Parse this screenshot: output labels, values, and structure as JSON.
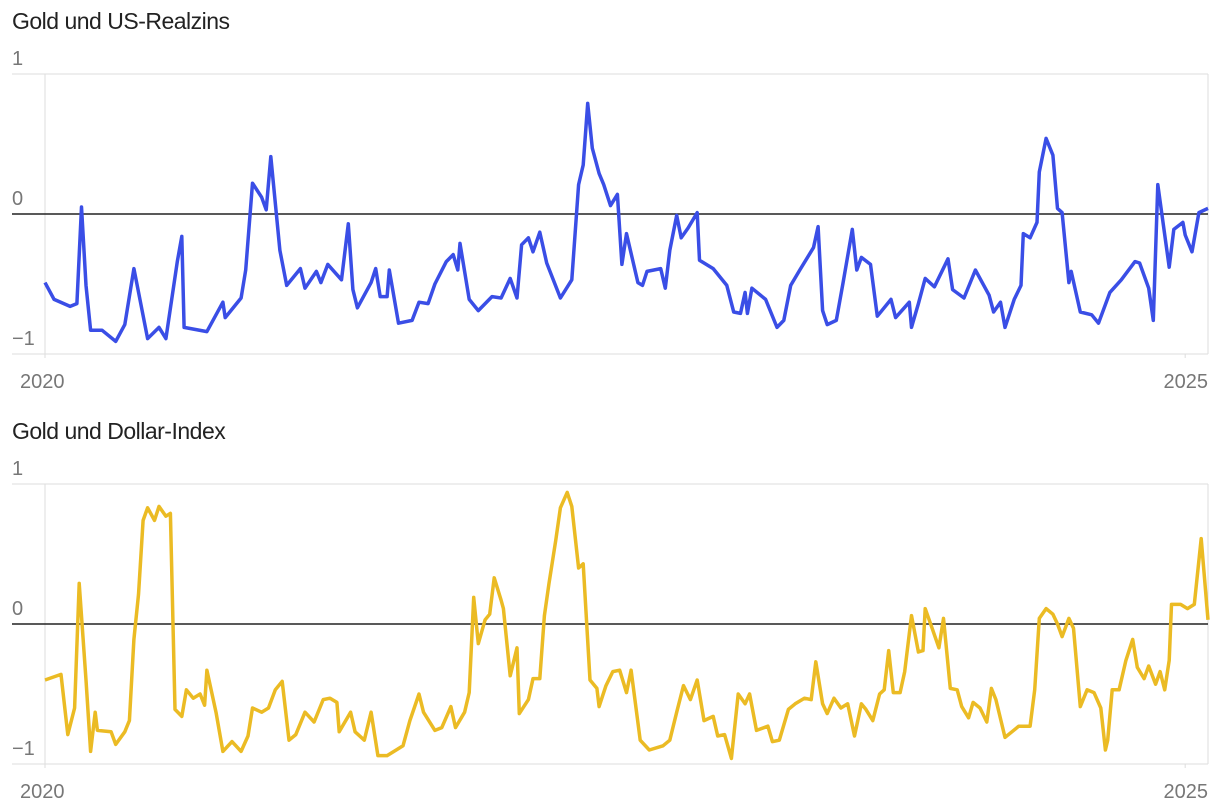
{
  "chart_data": [
    {
      "type": "line",
      "title": "Gold und US-Realzins",
      "color": "#3a4ee6",
      "xlim": [
        2020,
        2025.1
      ],
      "xticks": [
        2020,
        2025
      ],
      "ylim": [
        -1,
        1
      ],
      "yticks": [
        {
          "value": -1,
          "label": "−1"
        },
        0,
        1
      ],
      "x": [
        2020.0,
        2020.04,
        2020.11,
        2020.14,
        2020.16,
        2020.18,
        2020.2,
        2020.25,
        2020.31,
        2020.35,
        2020.39,
        2020.45,
        2020.5,
        2020.53,
        2020.58,
        2020.6,
        2020.61,
        2020.71,
        2020.78,
        2020.79,
        2020.86,
        2020.88,
        2020.91,
        2020.95,
        2020.97,
        2020.99,
        2021.03,
        2021.06,
        2021.12,
        2021.14,
        2021.19,
        2021.21,
        2021.24,
        2021.3,
        2021.33,
        2021.35,
        2021.37,
        2021.43,
        2021.45,
        2021.47,
        2021.5,
        2021.51,
        2021.55,
        2021.61,
        2021.64,
        2021.68,
        2021.71,
        2021.76,
        2021.79,
        2021.81,
        2021.82,
        2021.86,
        2021.9,
        2021.96,
        2022.0,
        2022.04,
        2022.07,
        2022.09,
        2022.12,
        2022.14,
        2022.17,
        2022.2,
        2022.26,
        2022.31,
        2022.34,
        2022.36,
        2022.38,
        2022.4,
        2022.43,
        2022.45,
        2022.48,
        2022.51,
        2022.53,
        2022.55,
        2022.6,
        2022.62,
        2022.64,
        2022.7,
        2022.72,
        2022.74,
        2022.77,
        2022.79,
        2022.82,
        2022.86,
        2022.87,
        2022.93,
        2022.99,
        2023.02,
        2023.05,
        2023.07,
        2023.08,
        2023.1,
        2023.16,
        2023.21,
        2023.24,
        2023.27,
        2023.31,
        2023.37,
        2023.39,
        2023.41,
        2023.43,
        2023.47,
        2023.5,
        2023.54,
        2023.56,
        2023.58,
        2023.62,
        2023.65,
        2023.71,
        2023.73,
        2023.79,
        2023.8,
        2023.83,
        2023.86,
        2023.9,
        2023.96,
        2023.98,
        2024.03,
        2024.08,
        2024.14,
        2024.16,
        2024.19,
        2024.21,
        2024.25,
        2024.28,
        2024.29,
        2024.32,
        2024.35,
        2024.36,
        2024.39,
        2024.42,
        2024.44,
        2024.46,
        2024.49,
        2024.5,
        2024.54,
        2024.59,
        2024.62,
        2024.67,
        2024.72,
        2024.78,
        2024.8,
        2024.84,
        2024.86,
        2024.88,
        2024.93,
        2024.95,
        2024.99,
        2025.0,
        2025.03,
        2025.06,
        2025.1
      ],
      "values": [
        -0.49,
        -0.61,
        -0.66,
        -0.64,
        0.05,
        -0.51,
        -0.83,
        -0.83,
        -0.91,
        -0.79,
        -0.39,
        -0.89,
        -0.81,
        -0.89,
        -0.34,
        -0.16,
        -0.81,
        -0.84,
        -0.63,
        -0.74,
        -0.6,
        -0.4,
        0.22,
        0.12,
        0.03,
        0.41,
        -0.26,
        -0.51,
        -0.39,
        -0.53,
        -0.41,
        -0.49,
        -0.36,
        -0.47,
        -0.07,
        -0.54,
        -0.67,
        -0.49,
        -0.39,
        -0.59,
        -0.59,
        -0.4,
        -0.78,
        -0.76,
        -0.63,
        -0.64,
        -0.5,
        -0.34,
        -0.29,
        -0.4,
        -0.21,
        -0.61,
        -0.69,
        -0.59,
        -0.6,
        -0.46,
        -0.6,
        -0.22,
        -0.17,
        -0.27,
        -0.13,
        -0.35,
        -0.6,
        -0.47,
        0.21,
        0.35,
        0.79,
        0.47,
        0.29,
        0.21,
        0.06,
        0.14,
        -0.36,
        -0.14,
        -0.49,
        -0.51,
        -0.41,
        -0.39,
        -0.53,
        -0.26,
        -0.01,
        -0.17,
        -0.1,
        0.01,
        -0.33,
        -0.39,
        -0.51,
        -0.7,
        -0.71,
        -0.56,
        -0.71,
        -0.53,
        -0.61,
        -0.81,
        -0.76,
        -0.51,
        -0.4,
        -0.24,
        -0.09,
        -0.69,
        -0.79,
        -0.76,
        -0.49,
        -0.11,
        -0.4,
        -0.31,
        -0.36,
        -0.73,
        -0.61,
        -0.74,
        -0.63,
        -0.81,
        -0.64,
        -0.46,
        -0.52,
        -0.32,
        -0.54,
        -0.6,
        -0.4,
        -0.58,
        -0.7,
        -0.63,
        -0.81,
        -0.61,
        -0.51,
        -0.14,
        -0.17,
        -0.06,
        0.3,
        0.54,
        0.42,
        0.04,
        0.01,
        -0.49,
        -0.41,
        -0.7,
        -0.72,
        -0.78,
        -0.56,
        -0.47,
        -0.34,
        -0.35,
        -0.53,
        -0.76,
        0.21,
        -0.38,
        -0.11,
        -0.06,
        -0.15,
        -0.27,
        0.01,
        0.04
      ]
    },
    {
      "type": "line",
      "title": "Gold und Dollar-Index",
      "color": "#ebbb24",
      "xlim": [
        2020,
        2025.1
      ],
      "xticks": [
        2020,
        2025
      ],
      "ylim": [
        -1,
        1
      ],
      "yticks": [
        {
          "value": -1,
          "label": "−1"
        },
        0,
        1
      ],
      "x": [
        2020.0,
        2020.07,
        2020.1,
        2020.13,
        2020.15,
        2020.18,
        2020.2,
        2020.22,
        2020.23,
        2020.29,
        2020.31,
        2020.35,
        2020.37,
        2020.39,
        2020.41,
        2020.43,
        2020.45,
        2020.48,
        2020.5,
        2020.53,
        2020.55,
        2020.57,
        2020.6,
        2020.62,
        2020.65,
        2020.68,
        2020.7,
        2020.71,
        2020.75,
        2020.78,
        2020.82,
        2020.86,
        2020.89,
        2020.91,
        2020.95,
        2020.98,
        2021.01,
        2021.04,
        2021.07,
        2021.1,
        2021.14,
        2021.18,
        2021.22,
        2021.25,
        2021.28,
        2021.29,
        2021.34,
        2021.36,
        2021.4,
        2021.43,
        2021.46,
        2021.5,
        2021.54,
        2021.57,
        2021.6,
        2021.64,
        2021.66,
        2021.71,
        2021.74,
        2021.78,
        2021.8,
        2021.84,
        2021.86,
        2021.88,
        2021.9,
        2021.93,
        2021.95,
        2021.97,
        2022.0,
        2022.01,
        2022.04,
        2022.07,
        2022.08,
        2022.12,
        2022.14,
        2022.17,
        2022.19,
        2022.21,
        2022.24,
        2022.26,
        2022.29,
        2022.31,
        2022.34,
        2022.36,
        2022.39,
        2022.42,
        2022.43,
        2022.46,
        2022.49,
        2022.52,
        2022.55,
        2022.57,
        2022.61,
        2022.65,
        2022.71,
        2022.74,
        2022.77,
        2022.8,
        2022.83,
        2022.86,
        2022.89,
        2022.93,
        2022.95,
        2022.98,
        2023.01,
        2023.04,
        2023.07,
        2023.09,
        2023.12,
        2023.17,
        2023.19,
        2023.22,
        2023.26,
        2023.29,
        2023.33,
        2023.36,
        2023.38,
        2023.41,
        2023.43,
        2023.46,
        2023.49,
        2023.52,
        2023.55,
        2023.58,
        2023.6,
        2023.63,
        2023.66,
        2023.68,
        2023.7,
        2023.72,
        2023.75,
        2023.77,
        2023.8,
        2023.83,
        2023.85,
        2023.86,
        2023.89,
        2023.92,
        2023.94,
        2023.97,
        2024.0,
        2024.02,
        2024.05,
        2024.07,
        2024.1,
        2024.13,
        2024.15,
        2024.17,
        2024.21,
        2024.24,
        2024.27,
        2024.32,
        2024.34,
        2024.36,
        2024.39,
        2024.42,
        2024.44,
        2024.46,
        2024.49,
        2024.51,
        2024.54,
        2024.57,
        2024.6,
        2024.63,
        2024.65,
        2024.66,
        2024.68,
        2024.71,
        2024.74,
        2024.77,
        2024.79,
        2024.82,
        2024.84,
        2024.87,
        2024.89,
        2024.91,
        2024.93,
        2024.94,
        2024.98,
        2025.01,
        2025.04,
        2025.07,
        2025.1
      ],
      "values": [
        -0.4,
        -0.36,
        -0.79,
        -0.6,
        0.29,
        -0.4,
        -0.91,
        -0.63,
        -0.76,
        -0.77,
        -0.86,
        -0.77,
        -0.69,
        -0.11,
        0.21,
        0.74,
        0.83,
        0.74,
        0.84,
        0.77,
        0.79,
        -0.61,
        -0.66,
        -0.47,
        -0.53,
        -0.5,
        -0.58,
        -0.33,
        -0.63,
        -0.91,
        -0.84,
        -0.91,
        -0.8,
        -0.6,
        -0.63,
        -0.6,
        -0.47,
        -0.41,
        -0.83,
        -0.79,
        -0.63,
        -0.7,
        -0.54,
        -0.53,
        -0.56,
        -0.77,
        -0.63,
        -0.77,
        -0.83,
        -0.63,
        -0.94,
        -0.94,
        -0.9,
        -0.87,
        -0.69,
        -0.5,
        -0.63,
        -0.76,
        -0.74,
        -0.59,
        -0.74,
        -0.63,
        -0.49,
        0.19,
        -0.14,
        0.03,
        0.07,
        0.33,
        0.17,
        0.11,
        -0.37,
        -0.17,
        -0.64,
        -0.54,
        -0.39,
        -0.39,
        0.06,
        0.29,
        0.6,
        0.83,
        0.94,
        0.84,
        0.4,
        0.43,
        -0.4,
        -0.46,
        -0.59,
        -0.44,
        -0.34,
        -0.33,
        -0.49,
        -0.33,
        -0.83,
        -0.9,
        -0.87,
        -0.83,
        -0.63,
        -0.44,
        -0.54,
        -0.4,
        -0.69,
        -0.66,
        -0.8,
        -0.79,
        -0.96,
        -0.5,
        -0.57,
        -0.5,
        -0.76,
        -0.73,
        -0.84,
        -0.83,
        -0.61,
        -0.57,
        -0.53,
        -0.54,
        -0.27,
        -0.57,
        -0.64,
        -0.53,
        -0.6,
        -0.57,
        -0.8,
        -0.57,
        -0.61,
        -0.69,
        -0.5,
        -0.47,
        -0.19,
        -0.49,
        -0.49,
        -0.34,
        0.06,
        -0.2,
        -0.19,
        0.11,
        -0.03,
        -0.17,
        0.04,
        -0.46,
        -0.47,
        -0.59,
        -0.67,
        -0.56,
        -0.6,
        -0.7,
        -0.46,
        -0.54,
        -0.81,
        -0.77,
        -0.73,
        -0.73,
        -0.47,
        0.04,
        0.11,
        0.07,
        0.0,
        -0.09,
        0.04,
        -0.03,
        -0.59,
        -0.47,
        -0.49,
        -0.6,
        -0.9,
        -0.83,
        -0.47,
        -0.47,
        -0.26,
        -0.11,
        -0.31,
        -0.39,
        -0.3,
        -0.43,
        -0.34,
        -0.47,
        -0.26,
        0.14,
        0.14,
        0.11,
        0.14,
        0.61,
        0.03
      ]
    }
  ]
}
